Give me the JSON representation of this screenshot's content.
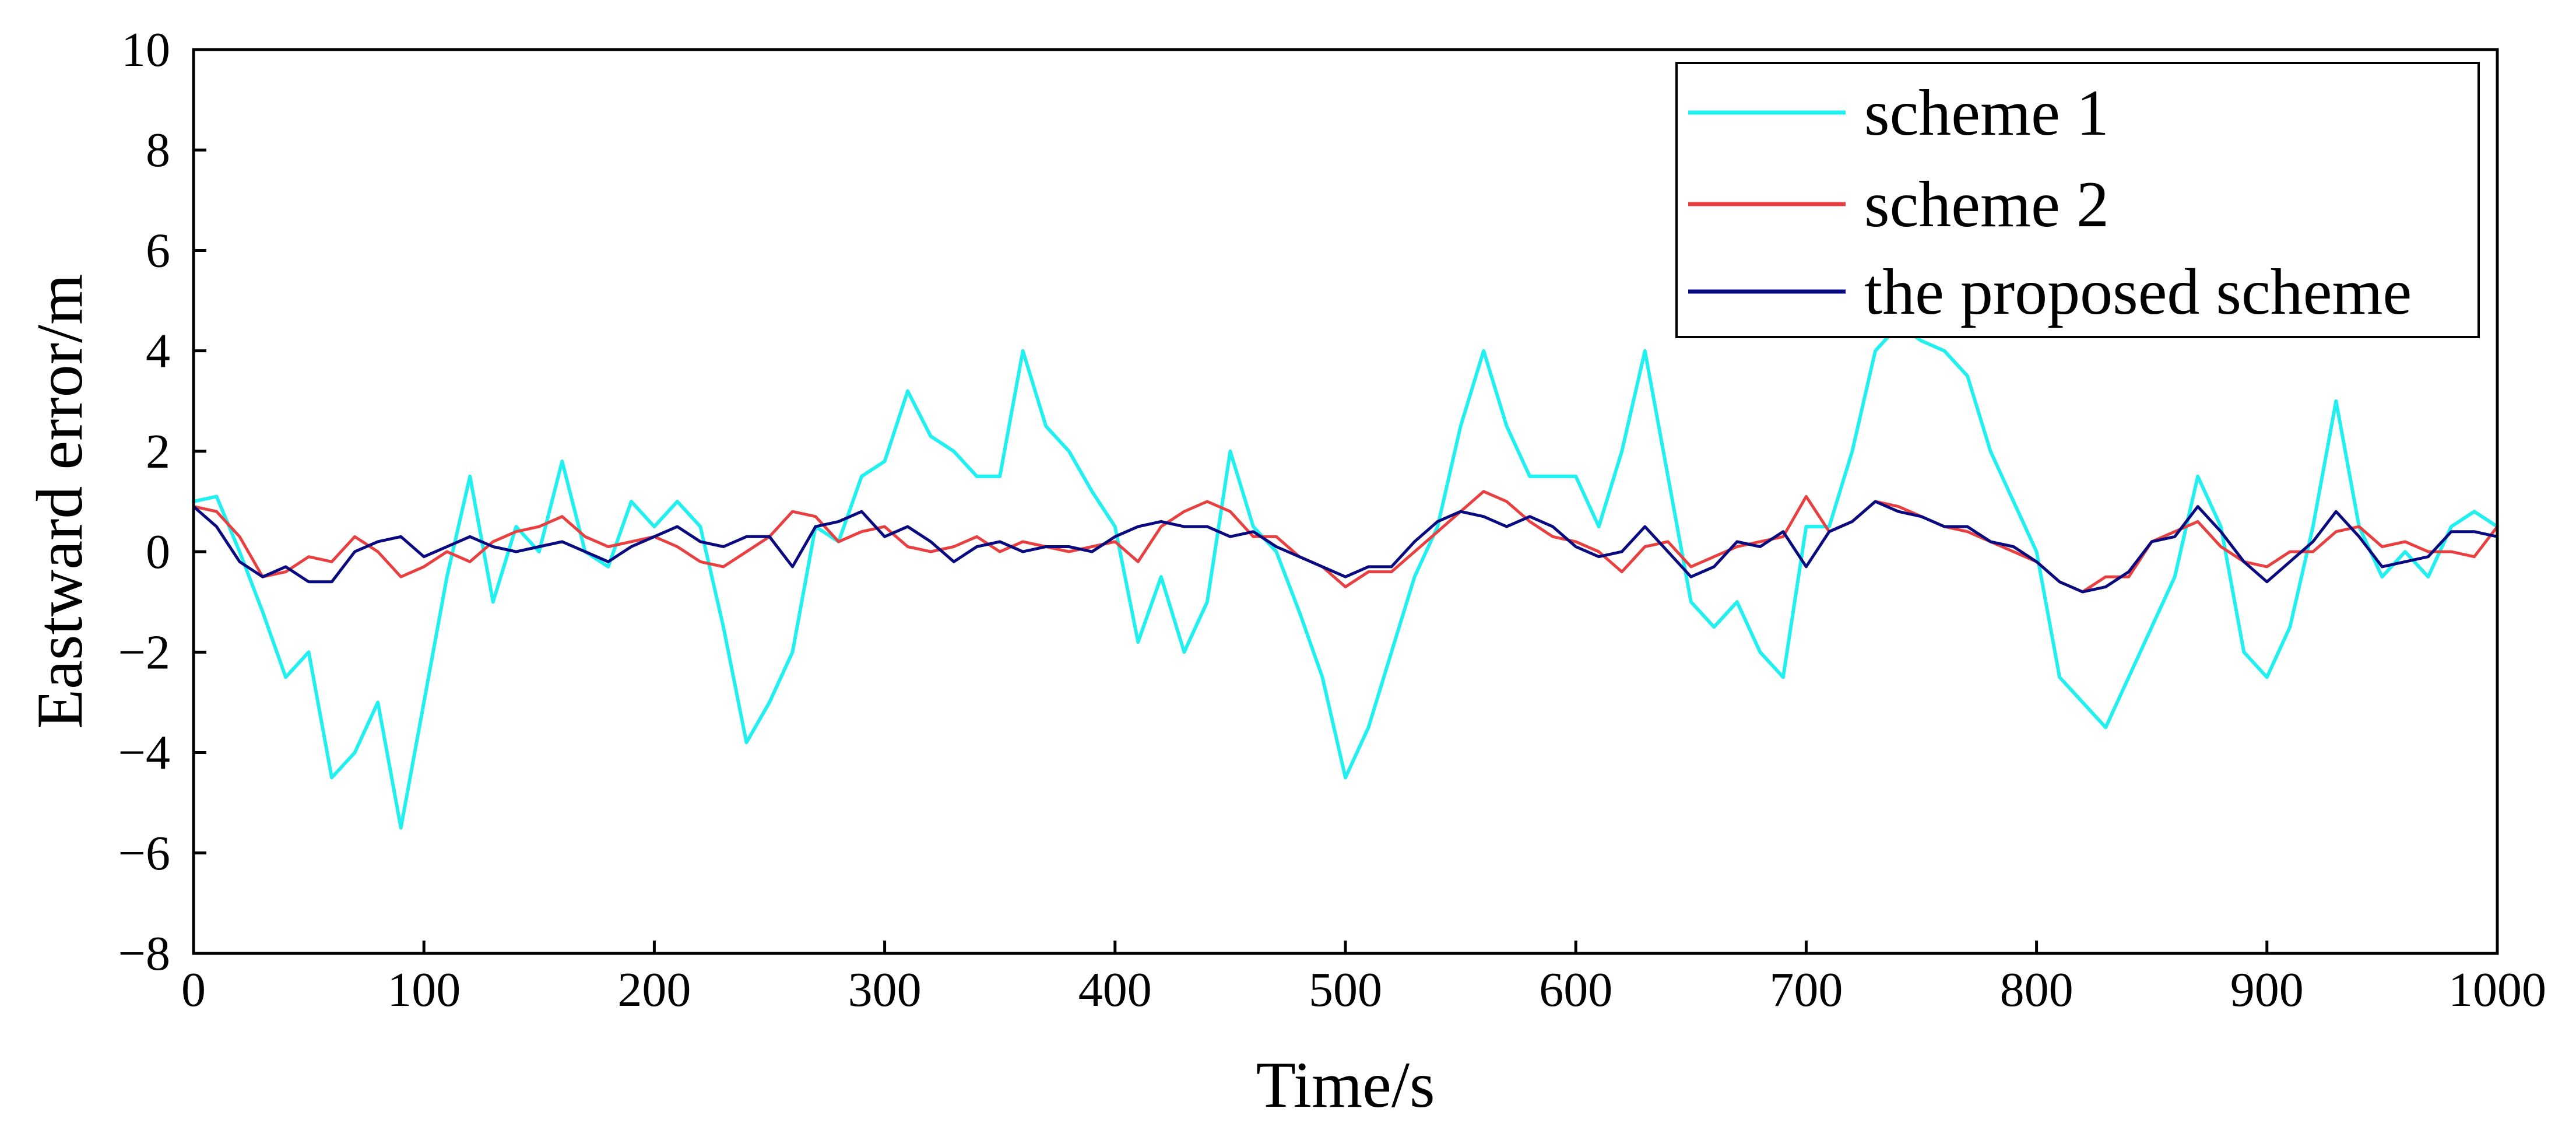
{
  "chart_data": {
    "type": "line",
    "title": "",
    "xlabel": "Time/s",
    "ylabel": "Eastward error/m",
    "xlim": [
      0,
      1000
    ],
    "ylim": [
      -8,
      10
    ],
    "x_ticks": [
      0,
      100,
      200,
      300,
      400,
      500,
      600,
      700,
      800,
      900,
      1000
    ],
    "y_ticks": [
      -8,
      -6,
      -4,
      -2,
      0,
      2,
      4,
      6,
      8,
      10
    ],
    "x_tick_labels": [
      "0",
      "100",
      "200",
      "300",
      "400",
      "500",
      "600",
      "700",
      "800",
      "900",
      "1000"
    ],
    "y_tick_labels": [
      "−8",
      "−6",
      "−4",
      "−2",
      "0",
      "2",
      "4",
      "6",
      "8",
      "10"
    ],
    "grid": false,
    "legend_position": "top-right",
    "x": [
      0,
      10,
      20,
      30,
      40,
      50,
      60,
      70,
      80,
      90,
      100,
      110,
      120,
      130,
      140,
      150,
      160,
      170,
      180,
      190,
      200,
      210,
      220,
      230,
      240,
      250,
      260,
      270,
      280,
      290,
      300,
      310,
      320,
      330,
      340,
      350,
      360,
      370,
      380,
      390,
      400,
      410,
      420,
      430,
      440,
      450,
      460,
      470,
      480,
      490,
      500,
      510,
      520,
      530,
      540,
      550,
      560,
      570,
      580,
      590,
      600,
      610,
      620,
      630,
      640,
      650,
      660,
      670,
      680,
      690,
      700,
      710,
      720,
      730,
      740,
      750,
      760,
      770,
      780,
      790,
      800,
      810,
      820,
      830,
      840,
      850,
      860,
      870,
      880,
      890,
      900,
      910,
      920,
      930,
      940,
      950,
      960,
      970,
      980,
      990,
      1000
    ],
    "series": [
      {
        "name": "scheme 1",
        "color": "#22f0f0",
        "values": [
          1.0,
          1.1,
          0.0,
          -1.2,
          -2.5,
          -2.0,
          -4.5,
          -4.0,
          -3.0,
          -5.5,
          -3.0,
          -0.5,
          1.5,
          -1.0,
          0.5,
          0.0,
          1.8,
          0.0,
          -0.3,
          1.0,
          0.5,
          1.0,
          0.5,
          -1.5,
          -3.8,
          -3.0,
          -2.0,
          0.5,
          0.2,
          1.5,
          1.8,
          3.2,
          2.3,
          2.0,
          1.5,
          1.5,
          4.0,
          2.5,
          2.0,
          1.2,
          0.5,
          -1.8,
          -0.5,
          -2.0,
          -1.0,
          2.0,
          0.5,
          0.0,
          -1.2,
          -2.5,
          -4.5,
          -3.5,
          -2.0,
          -0.5,
          0.5,
          2.5,
          4.0,
          2.5,
          1.5,
          1.5,
          1.5,
          0.5,
          2.0,
          4.0,
          1.5,
          -1.0,
          -1.5,
          -1.0,
          -2.0,
          -2.5,
          0.5,
          0.5,
          2.0,
          4.0,
          4.5,
          4.2,
          4.0,
          3.5,
          2.0,
          1.0,
          0.0,
          -2.5,
          -3.0,
          -3.5,
          -2.5,
          -1.5,
          -0.5,
          1.5,
          0.5,
          -2.0,
          -2.5,
          -1.5,
          0.5,
          3.0,
          0.5,
          -0.5,
          0.0,
          -0.5,
          0.5,
          0.8,
          0.5
        ]
      },
      {
        "name": "scheme 2",
        "color": "#e84040",
        "values": [
          0.9,
          0.8,
          0.3,
          -0.5,
          -0.4,
          -0.1,
          -0.2,
          0.3,
          0.0,
          -0.5,
          -0.3,
          0.0,
          -0.2,
          0.2,
          0.4,
          0.5,
          0.7,
          0.3,
          0.1,
          0.2,
          0.3,
          0.1,
          -0.2,
          -0.3,
          0.0,
          0.3,
          0.8,
          0.7,
          0.2,
          0.4,
          0.5,
          0.1,
          0.0,
          0.1,
          0.3,
          0.0,
          0.2,
          0.1,
          0.0,
          0.1,
          0.2,
          -0.2,
          0.5,
          0.8,
          1.0,
          0.8,
          0.3,
          0.3,
          -0.1,
          -0.3,
          -0.7,
          -0.4,
          -0.4,
          0.0,
          0.4,
          0.8,
          1.2,
          1.0,
          0.6,
          0.3,
          0.2,
          0.0,
          -0.4,
          0.1,
          0.2,
          -0.3,
          -0.1,
          0.1,
          0.2,
          0.3,
          1.1,
          0.4,
          0.6,
          1.0,
          0.9,
          0.7,
          0.5,
          0.4,
          0.2,
          0.0,
          -0.2,
          -0.6,
          -0.8,
          -0.5,
          -0.5,
          0.2,
          0.4,
          0.6,
          0.1,
          -0.2,
          -0.3,
          0.0,
          0.0,
          0.4,
          0.5,
          0.1,
          0.2,
          0.0,
          0.0,
          -0.1,
          0.5
        ]
      },
      {
        "name": "the proposed scheme",
        "color": "#0a0a80",
        "values": [
          0.9,
          0.5,
          -0.2,
          -0.5,
          -0.3,
          -0.6,
          -0.6,
          0.0,
          0.2,
          0.3,
          -0.1,
          0.1,
          0.3,
          0.1,
          0.0,
          0.1,
          0.2,
          0.0,
          -0.2,
          0.1,
          0.3,
          0.5,
          0.2,
          0.1,
          0.3,
          0.3,
          -0.3,
          0.5,
          0.6,
          0.8,
          0.3,
          0.5,
          0.2,
          -0.2,
          0.1,
          0.2,
          0.0,
          0.1,
          0.1,
          0.0,
          0.3,
          0.5,
          0.6,
          0.5,
          0.5,
          0.3,
          0.4,
          0.1,
          -0.1,
          -0.3,
          -0.5,
          -0.3,
          -0.3,
          0.2,
          0.6,
          0.8,
          0.7,
          0.5,
          0.7,
          0.5,
          0.1,
          -0.1,
          0.0,
          0.5,
          0.0,
          -0.5,
          -0.3,
          0.2,
          0.1,
          0.4,
          -0.3,
          0.4,
          0.6,
          1.0,
          0.8,
          0.7,
          0.5,
          0.5,
          0.2,
          0.1,
          -0.2,
          -0.6,
          -0.8,
          -0.7,
          -0.4,
          0.2,
          0.3,
          0.9,
          0.4,
          -0.2,
          -0.6,
          -0.2,
          0.2,
          0.8,
          0.3,
          -0.3,
          -0.2,
          -0.1,
          0.4,
          0.4,
          0.3
        ]
      }
    ]
  }
}
